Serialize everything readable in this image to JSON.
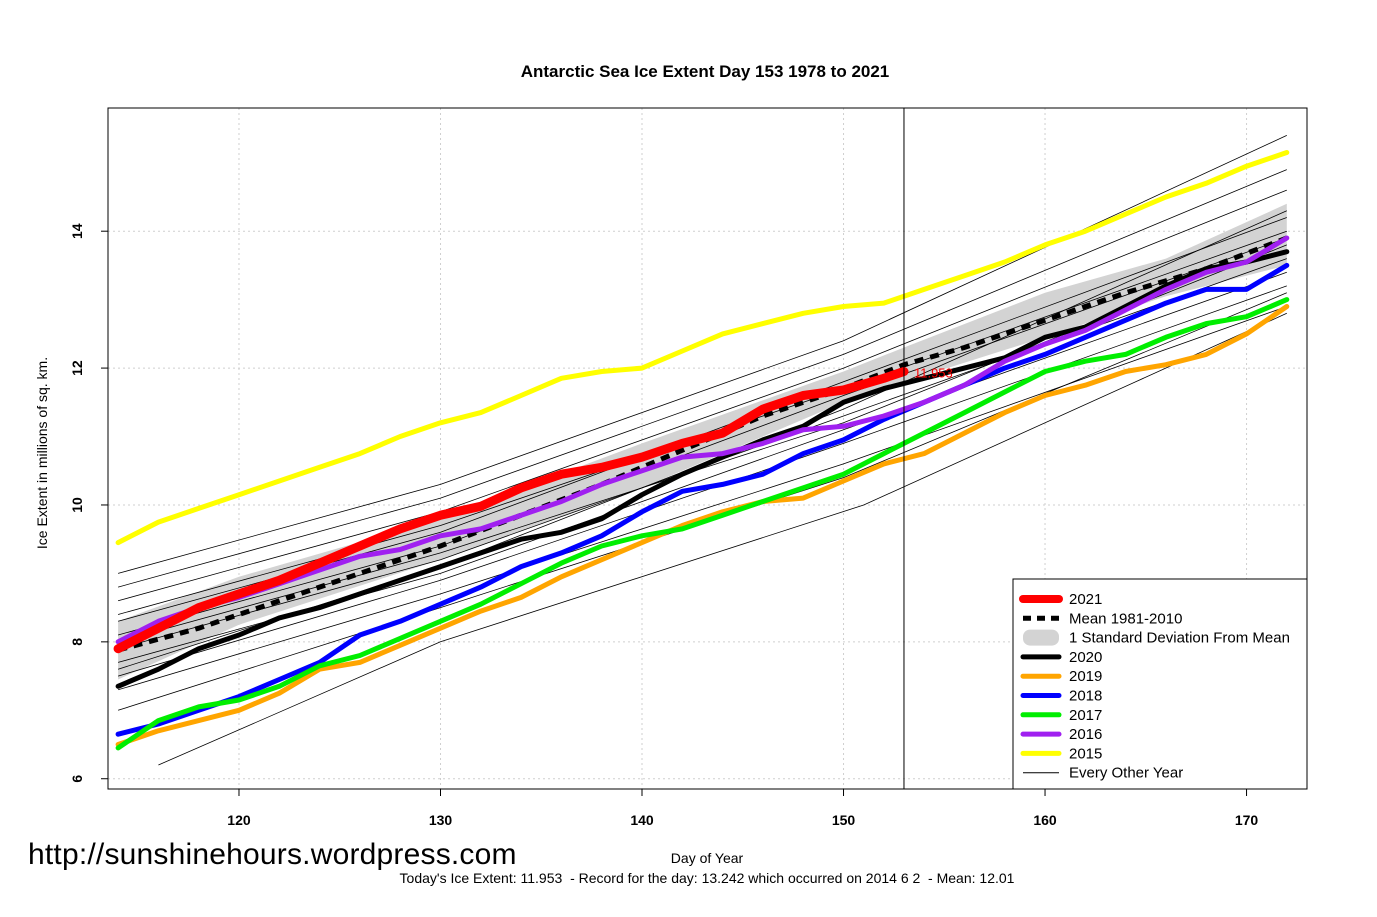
{
  "watermark": "http://sunshinehours.wordpress.com",
  "chart_data": {
    "type": "line",
    "title": "Antarctic Sea Ice Extent Day 153 1978 to 2021",
    "xlabel": "Day of Year",
    "ylabel": "Ice Extent in millions of sq. km.",
    "footer": "Today's Ice Extent: 11.953  - Record for the day: 13.242 which occurred on 2014 6 2  - Mean: 12.01",
    "xlim": [
      113.5,
      173
    ],
    "ylim": [
      5.85,
      15.8
    ],
    "x_ticks": [
      120,
      130,
      140,
      150,
      160,
      170
    ],
    "y_ticks": [
      6,
      8,
      10,
      12,
      14
    ],
    "x_tick_labels": [
      "120",
      "130",
      "140",
      "150",
      "160",
      "170"
    ],
    "y_tick_labels": [
      "6",
      "8",
      "10",
      "12",
      "14"
    ],
    "grid": true,
    "current_day": 153,
    "current_value": 11.953,
    "current_value_label": "11.953",
    "std_band": {
      "label": "1 Standard Deviation From Mean",
      "x": [
        114,
        120,
        130,
        140,
        150,
        153,
        160,
        166,
        172
      ],
      "lower": [
        7.45,
        8.25,
        9.2,
        10.25,
        11.5,
        11.8,
        12.45,
        13.05,
        13.5
      ],
      "upper": [
        8.3,
        8.95,
        9.8,
        10.9,
        11.95,
        12.3,
        13.1,
        13.6,
        14.4
      ]
    },
    "mean": {
      "name": "Mean 1981-2010",
      "x": [
        114,
        118,
        122,
        126,
        130,
        134,
        138,
        142,
        146,
        150,
        153,
        156,
        160,
        164,
        168,
        172
      ],
      "y": [
        7.88,
        8.2,
        8.6,
        9.0,
        9.4,
        9.85,
        10.3,
        10.8,
        11.3,
        11.7,
        12.05,
        12.3,
        12.7,
        13.1,
        13.45,
        13.9
      ]
    },
    "series": [
      {
        "name": "2021",
        "color": "#ff0000",
        "width": 9,
        "x": [
          114,
          116,
          118,
          120,
          122,
          124,
          126,
          128,
          130,
          132,
          134,
          136,
          138,
          140,
          142,
          144,
          146,
          148,
          150,
          152,
          153
        ],
        "y": [
          7.9,
          8.2,
          8.5,
          8.7,
          8.9,
          9.15,
          9.4,
          9.65,
          9.85,
          9.98,
          10.25,
          10.45,
          10.55,
          10.7,
          10.9,
          11.05,
          11.4,
          11.6,
          11.68,
          11.85,
          11.95
        ]
      },
      {
        "name": "2020",
        "color": "#000000",
        "width": 5,
        "x": [
          114,
          116,
          118,
          120,
          122,
          124,
          126,
          128,
          130,
          132,
          134,
          136,
          138,
          140,
          142,
          144,
          146,
          148,
          150,
          152,
          154,
          156,
          158,
          160,
          162,
          164,
          166,
          168,
          170,
          172
        ],
        "y": [
          7.35,
          7.6,
          7.9,
          8.1,
          8.35,
          8.5,
          8.7,
          8.9,
          9.1,
          9.3,
          9.5,
          9.6,
          9.8,
          10.15,
          10.45,
          10.7,
          10.95,
          11.15,
          11.5,
          11.7,
          11.85,
          12.0,
          12.15,
          12.45,
          12.6,
          12.9,
          13.2,
          13.45,
          13.55,
          13.7
        ]
      },
      {
        "name": "2019",
        "color": "#ffa500",
        "width": 5,
        "x": [
          114,
          116,
          118,
          120,
          122,
          124,
          126,
          128,
          130,
          132,
          134,
          136,
          138,
          140,
          142,
          144,
          146,
          148,
          150,
          152,
          154,
          156,
          158,
          160,
          162,
          164,
          166,
          168,
          170,
          172
        ],
        "y": [
          6.5,
          6.7,
          6.85,
          7.0,
          7.25,
          7.6,
          7.7,
          7.95,
          8.2,
          8.45,
          8.65,
          8.95,
          9.2,
          9.45,
          9.7,
          9.9,
          10.05,
          10.1,
          10.35,
          10.6,
          10.75,
          11.05,
          11.35,
          11.6,
          11.75,
          11.95,
          12.05,
          12.2,
          12.5,
          12.9
        ]
      },
      {
        "name": "2018",
        "color": "#0000ff",
        "width": 5,
        "x": [
          114,
          116,
          118,
          120,
          122,
          124,
          126,
          128,
          130,
          132,
          134,
          136,
          138,
          140,
          142,
          144,
          146,
          148,
          150,
          152,
          154,
          156,
          158,
          160,
          162,
          164,
          166,
          168,
          170,
          172
        ],
        "y": [
          6.65,
          6.8,
          7.0,
          7.2,
          7.45,
          7.7,
          8.1,
          8.3,
          8.55,
          8.8,
          9.1,
          9.3,
          9.55,
          9.9,
          10.2,
          10.3,
          10.45,
          10.75,
          10.95,
          11.25,
          11.5,
          11.75,
          12.0,
          12.2,
          12.45,
          12.7,
          12.95,
          13.15,
          13.15,
          13.5
        ]
      },
      {
        "name": "2017",
        "color": "#00ee00",
        "width": 5,
        "x": [
          114,
          116,
          118,
          120,
          122,
          124,
          126,
          128,
          130,
          132,
          134,
          136,
          138,
          140,
          142,
          144,
          146,
          148,
          150,
          152,
          154,
          156,
          158,
          160,
          162,
          164,
          166,
          168,
          170,
          172
        ],
        "y": [
          6.45,
          6.85,
          7.05,
          7.15,
          7.35,
          7.65,
          7.8,
          8.05,
          8.3,
          8.55,
          8.85,
          9.15,
          9.4,
          9.55,
          9.65,
          9.85,
          10.05,
          10.25,
          10.45,
          10.75,
          11.05,
          11.35,
          11.65,
          11.95,
          12.1,
          12.2,
          12.45,
          12.65,
          12.75,
          13.0
        ]
      },
      {
        "name": "2016",
        "color": "#a020f0",
        "width": 5,
        "x": [
          114,
          116,
          118,
          120,
          122,
          124,
          126,
          128,
          130,
          132,
          134,
          136,
          138,
          140,
          142,
          144,
          146,
          148,
          150,
          152,
          154,
          156,
          158,
          160,
          162,
          164,
          166,
          168,
          170,
          172
        ],
        "y": [
          8.0,
          8.3,
          8.5,
          8.65,
          8.85,
          9.05,
          9.25,
          9.35,
          9.55,
          9.65,
          9.85,
          10.05,
          10.3,
          10.5,
          10.7,
          10.75,
          10.9,
          11.1,
          11.15,
          11.3,
          11.5,
          11.75,
          12.1,
          12.35,
          12.55,
          12.85,
          13.15,
          13.4,
          13.55,
          13.9
        ]
      },
      {
        "name": "2015",
        "color": "#ffff00",
        "width": 5,
        "x": [
          114,
          116,
          118,
          120,
          122,
          124,
          126,
          128,
          130,
          132,
          134,
          136,
          138,
          140,
          142,
          144,
          146,
          148,
          150,
          152,
          154,
          156,
          158,
          160,
          162,
          164,
          166,
          168,
          170,
          172
        ],
        "y": [
          9.45,
          9.75,
          9.95,
          10.15,
          10.35,
          10.55,
          10.75,
          11.0,
          11.2,
          11.35,
          11.6,
          11.85,
          11.95,
          12.0,
          12.25,
          12.5,
          12.65,
          12.8,
          12.9,
          12.95,
          13.15,
          13.35,
          13.55,
          13.8,
          14.0,
          14.25,
          14.5,
          14.7,
          14.95,
          15.15
        ]
      }
    ],
    "other_years": [
      {
        "x": [
          114,
          130,
          150,
          172
        ],
        "y": [
          8.6,
          9.9,
          12.0,
          14.6
        ]
      },
      {
        "x": [
          114,
          130,
          150,
          172
        ],
        "y": [
          8.3,
          9.6,
          11.8,
          14.2
        ]
      },
      {
        "x": [
          114,
          130,
          150,
          172
        ],
        "y": [
          8.1,
          9.4,
          11.6,
          13.9
        ]
      },
      {
        "x": [
          114,
          130,
          150,
          172
        ],
        "y": [
          7.9,
          9.2,
          11.3,
          13.6
        ]
      },
      {
        "x": [
          114,
          130,
          150,
          172
        ],
        "y": [
          7.7,
          9.0,
          11.1,
          13.4
        ]
      },
      {
        "x": [
          114,
          130,
          150,
          172
        ],
        "y": [
          7.5,
          8.9,
          10.9,
          13.2
        ]
      },
      {
        "x": [
          114,
          130,
          150,
          172
        ],
        "y": [
          7.3,
          8.7,
          10.6,
          12.9
        ]
      },
      {
        "x": [
          114,
          130,
          150,
          172
        ],
        "y": [
          8.8,
          10.1,
          12.2,
          14.9
        ]
      },
      {
        "x": [
          114,
          130,
          150,
          172
        ],
        "y": [
          9.0,
          10.3,
          12.4,
          15.4
        ]
      },
      {
        "x": [
          114,
          130,
          150,
          172
        ],
        "y": [
          7.0,
          8.5,
          10.4,
          13.1
        ]
      },
      {
        "x": [
          116,
          130,
          151,
          172
        ],
        "y": [
          6.2,
          8.0,
          10.0,
          12.8
        ]
      },
      {
        "x": [
          114,
          130,
          150,
          172
        ],
        "y": [
          8.4,
          9.7,
          11.7,
          14.0
        ]
      },
      {
        "x": [
          114,
          130,
          150,
          172
        ],
        "y": [
          8.0,
          9.3,
          11.2,
          13.8
        ]
      },
      {
        "x": [
          114,
          130,
          150,
          172
        ],
        "y": [
          7.6,
          9.1,
          11.4,
          14.3
        ]
      }
    ],
    "legend": {
      "position": "bottom-right",
      "entries": [
        {
          "label": "2021",
          "color": "#ff0000",
          "style": "thick"
        },
        {
          "label": "Mean 1981-2010",
          "color": "#000000",
          "style": "dashed"
        },
        {
          "label": "1 Standard Deviation From Mean",
          "color": "#d3d3d3",
          "style": "band"
        },
        {
          "label": "2020",
          "color": "#000000",
          "style": "line"
        },
        {
          "label": "2019",
          "color": "#ffa500",
          "style": "line"
        },
        {
          "label": "2018",
          "color": "#0000ff",
          "style": "line"
        },
        {
          "label": "2017",
          "color": "#00ee00",
          "style": "line"
        },
        {
          "label": "2016",
          "color": "#a020f0",
          "style": "line"
        },
        {
          "label": "2015",
          "color": "#ffff00",
          "style": "line"
        },
        {
          "label": "Every Other Year",
          "color": "#000000",
          "style": "thin"
        }
      ]
    }
  }
}
